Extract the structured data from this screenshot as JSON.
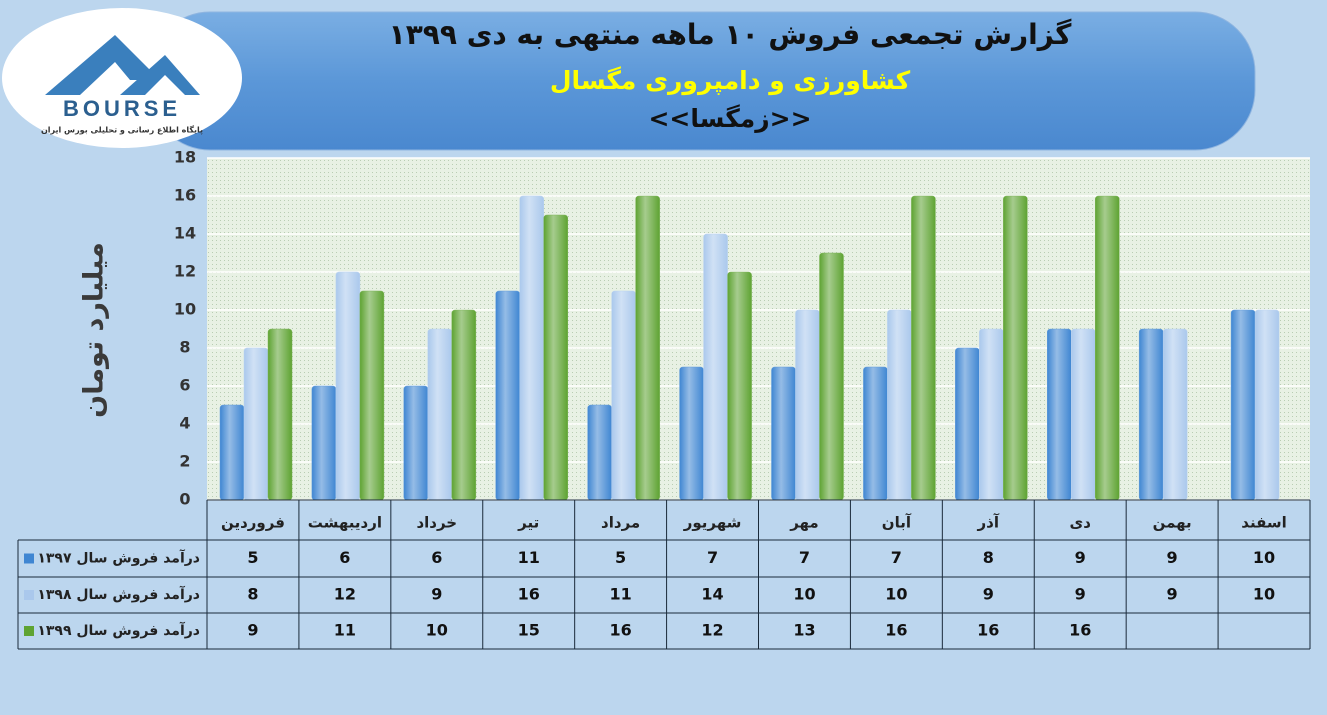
{
  "logo": {
    "name": "BOURSE",
    "tagline": "پایگاه اطلاع رسانی و تحلیلی بورس ایران"
  },
  "chart_data": {
    "type": "bar",
    "title": "گزارش تجمعی فروش ۱۰ ماهه منتهی به دی ۱۳۹۹",
    "subtitle": "کشاورزی و دامپروری مگسال",
    "symbol": "<<زمگسا>>",
    "y_label": "میلیارد تومان",
    "categories": [
      "فروردین",
      "اردیبهشت",
      "خرداد",
      "تیر",
      "مرداد",
      "شهریور",
      "مهر",
      "آبان",
      "آذر",
      "دی",
      "بهمن",
      "اسفند"
    ],
    "series": [
      {
        "name": "درآمد فروش سال ۱۳۹۷",
        "color": "#3f86d2",
        "values": [
          5,
          6,
          6,
          11,
          5,
          7,
          7,
          7,
          8,
          9,
          9,
          10
        ]
      },
      {
        "name": "درآمد فروش سال ۱۳۹۸",
        "color": "#aac8ec",
        "values": [
          8,
          12,
          9,
          16,
          11,
          14,
          10,
          10,
          9,
          9,
          9,
          10
        ]
      },
      {
        "name": "درآمد فروش سال ۱۳۹۹",
        "color": "#5ea332",
        "values": [
          9,
          11,
          10,
          15,
          16,
          12,
          13,
          16,
          16,
          16,
          null,
          null
        ]
      }
    ],
    "ylim": [
      0,
      18
    ],
    "yticks": [
      0,
      2,
      4,
      6,
      8,
      10,
      12,
      14,
      16,
      18
    ],
    "grid": true
  }
}
